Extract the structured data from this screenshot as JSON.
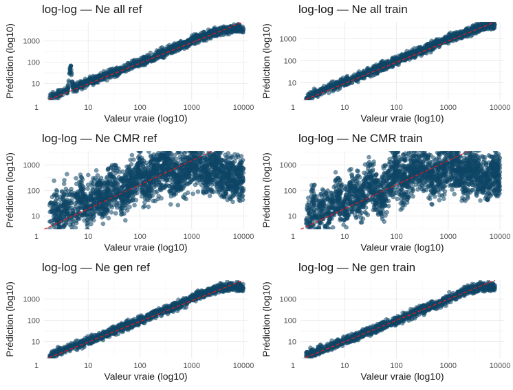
{
  "chart_data": [
    {
      "type": "scatter",
      "title": "log-log — Ne all ref",
      "xlabel": "Valeur vraie (log10)",
      "ylabel": "Prédiction (log10)",
      "x_scale": "log10",
      "y_scale": "log10",
      "xlim": [
        1.4,
        12000
      ],
      "ylim": [
        1.6,
        7800
      ],
      "x_ticks": [
        1,
        10,
        100,
        1000,
        10000
      ],
      "x_tick_labels": [
        "1",
        "10",
        "100",
        "1000",
        "10000"
      ],
      "y_ticks": [
        10,
        100,
        1000
      ],
      "y_tick_labels": [
        "10",
        "100",
        "1000"
      ],
      "series": [
        {
          "points": [
            [
              1.8,
              2.1
            ],
            [
              2.2,
              2.9
            ],
            [
              3,
              3.4
            ],
            [
              4,
              4.9
            ],
            [
              4.6,
              64
            ],
            [
              5,
              6.2
            ],
            [
              7,
              7.9
            ],
            [
              10,
              12
            ],
            [
              15,
              15.5
            ],
            [
              20,
              22
            ],
            [
              30,
              29
            ],
            [
              50,
              48
            ],
            [
              80,
              80
            ],
            [
              120,
              115
            ],
            [
              200,
              190
            ],
            [
              300,
              310
            ],
            [
              500,
              470
            ],
            [
              800,
              760
            ],
            [
              1000,
              1100
            ],
            [
              2000,
              1900
            ],
            [
              3000,
              2600
            ],
            [
              5000,
              3500
            ],
            [
              8000,
              3900
            ],
            [
              10000,
              3200
            ]
          ],
          "spread_dex": 0.1,
          "marker_color": "#0e4666"
        }
      ],
      "reference_line": {
        "from": [
          1.4,
          1.4
        ],
        "to": [
          10000,
          7800
        ],
        "color": "#e41a1c",
        "style": "dashed"
      },
      "grid": true,
      "legend": "none"
    },
    {
      "type": "scatter",
      "title": "log-log — Ne all train",
      "xlabel": "Valeur vraie (log10)",
      "ylabel": "Prédiction (log10)",
      "x_scale": "log10",
      "y_scale": "log10",
      "xlim": [
        1.4,
        12000
      ],
      "ylim": [
        1.6,
        5800
      ],
      "x_ticks": [
        1,
        10,
        100,
        1000,
        10000
      ],
      "x_tick_labels": [
        "1",
        "10",
        "100",
        "1000",
        "10000"
      ],
      "y_ticks": [
        10,
        100,
        1000
      ],
      "y_tick_labels": [
        "10",
        "100",
        "1000"
      ],
      "series": [
        {
          "points": [
            [
              1.8,
              2.0
            ],
            [
              2.2,
              2.8
            ],
            [
              3,
              3.3
            ],
            [
              4,
              4.6
            ],
            [
              5,
              5.9
            ],
            [
              7,
              8
            ],
            [
              10,
              11
            ],
            [
              15,
              15
            ],
            [
              20,
              21
            ],
            [
              30,
              30
            ],
            [
              50,
              50
            ],
            [
              80,
              78
            ],
            [
              120,
              118
            ],
            [
              200,
              200
            ],
            [
              300,
              290
            ],
            [
              500,
              480
            ],
            [
              800,
              760
            ],
            [
              1000,
              1000
            ],
            [
              2000,
              1800
            ],
            [
              3000,
              2600
            ],
            [
              5000,
              3800
            ],
            [
              8000,
              4300
            ]
          ],
          "spread_dex": 0.1,
          "marker_color": "#0e4666"
        }
      ],
      "reference_line": {
        "from": [
          1.4,
          1.4
        ],
        "to": [
          8000,
          5800
        ],
        "color": "#e41a1c",
        "style": "dashed"
      },
      "grid": true,
      "legend": "none"
    },
    {
      "type": "scatter",
      "title": "log-log — Ne CMR ref",
      "xlabel": "Valeur vraie (log10)",
      "ylabel": "Prédiction (log10)",
      "x_scale": "log10",
      "y_scale": "log10",
      "xlim": [
        1.4,
        12000
      ],
      "ylim": [
        3.0,
        3500
      ],
      "x_ticks": [
        1,
        10,
        100,
        1000,
        10000
      ],
      "x_tick_labels": [
        "1",
        "10",
        "100",
        "1000",
        "10000"
      ],
      "y_ticks": [
        10,
        100,
        1000
      ],
      "y_tick_labels": [
        "10",
        "100",
        "1000"
      ],
      "series": [
        {
          "points": [
            [
              1.8,
              6
            ],
            [
              2,
              14
            ],
            [
              2.5,
              20
            ],
            [
              3,
              10
            ],
            [
              4,
              30
            ],
            [
              5,
              12
            ],
            [
              7,
              50
            ],
            [
              10,
              20
            ],
            [
              15,
              80
            ],
            [
              20,
              40
            ],
            [
              30,
              150
            ],
            [
              50,
              70
            ],
            [
              80,
              300
            ],
            [
              100,
              1000
            ],
            [
              120,
              200
            ],
            [
              200,
              500
            ],
            [
              300,
              900
            ],
            [
              500,
              300
            ],
            [
              800,
              700
            ],
            [
              1000,
              1500
            ],
            [
              2000,
              500
            ],
            [
              3000,
              800
            ],
            [
              5000,
              300
            ],
            [
              8000,
              400
            ],
            [
              10000,
              250
            ]
          ],
          "spread_dex": 0.45,
          "marker_color": "#0e4666"
        }
      ],
      "reference_line": {
        "from": [
          1.4,
          3.0
        ],
        "to": [
          2500,
          3500
        ],
        "color": "#e41a1c",
        "style": "dashed"
      },
      "grid": true,
      "legend": "none"
    },
    {
      "type": "scatter",
      "title": "log-log — Ne CMR train",
      "xlabel": "Valeur vraie (log10)",
      "ylabel": "Prédiction (log10)",
      "x_scale": "log10",
      "y_scale": "log10",
      "xlim": [
        1.4,
        12000
      ],
      "ylim": [
        3.0,
        3500
      ],
      "x_ticks": [
        1,
        10,
        100,
        1000,
        10000
      ],
      "x_tick_labels": [
        "1",
        "10",
        "100",
        "1000",
        "10000"
      ],
      "y_ticks": [
        10,
        100,
        1000
      ],
      "y_tick_labels": [
        "10",
        "100",
        "1000"
      ],
      "series": [
        {
          "points": [
            [
              1.8,
              5
            ],
            [
              2,
              12
            ],
            [
              2.5,
              25
            ],
            [
              3,
              8
            ],
            [
              4,
              30
            ],
            [
              5,
              10
            ],
            [
              7,
              60
            ],
            [
              10,
              18
            ],
            [
              15,
              90
            ],
            [
              20,
              40
            ],
            [
              30,
              180
            ],
            [
              50,
              60
            ],
            [
              80,
              400
            ],
            [
              100,
              1000
            ],
            [
              120,
              200
            ],
            [
              200,
              500
            ],
            [
              300,
              800
            ],
            [
              500,
              300
            ],
            [
              800,
              700
            ],
            [
              1000,
              1200
            ],
            [
              2000,
              400
            ],
            [
              3000,
              700
            ],
            [
              5000,
              250
            ],
            [
              8000,
              500
            ],
            [
              10000,
              300
            ]
          ],
          "spread_dex": 0.45,
          "marker_color": "#0e4666"
        }
      ],
      "reference_line": {
        "from": [
          1.4,
          3.0
        ],
        "to": [
          2500,
          3500
        ],
        "color": "#e41a1c",
        "style": "dashed"
      },
      "grid": true,
      "legend": "none"
    },
    {
      "type": "scatter",
      "title": "log-log — Ne gen ref",
      "xlabel": "Valeur vraie (log10)",
      "ylabel": "Prédiction (log10)",
      "x_scale": "log10",
      "y_scale": "log10",
      "xlim": [
        1.4,
        12000
      ],
      "ylim": [
        1.6,
        7800
      ],
      "x_ticks": [
        1,
        10,
        100,
        1000,
        10000
      ],
      "x_tick_labels": [
        "1",
        "10",
        "100",
        "1000",
        "10000"
      ],
      "y_ticks": [
        10,
        100,
        1000
      ],
      "y_tick_labels": [
        "10",
        "100",
        "1000"
      ],
      "series": [
        {
          "points": [
            [
              1.8,
              2.2
            ],
            [
              2.2,
              2.8
            ],
            [
              3,
              3.5
            ],
            [
              4,
              4.5
            ],
            [
              5,
              5.5
            ],
            [
              7,
              7.5
            ],
            [
              10,
              11
            ],
            [
              15,
              15
            ],
            [
              20,
              21
            ],
            [
              30,
              30
            ],
            [
              50,
              50
            ],
            [
              80,
              78
            ],
            [
              120,
              118
            ],
            [
              200,
              200
            ],
            [
              300,
              300
            ],
            [
              500,
              480
            ],
            [
              800,
              760
            ],
            [
              1000,
              1100
            ],
            [
              2000,
              2200
            ],
            [
              3000,
              3000
            ],
            [
              5000,
              3800
            ],
            [
              8000,
              4000
            ],
            [
              10000,
              3200
            ]
          ],
          "spread_dex": 0.1,
          "marker_color": "#0e4666"
        }
      ],
      "reference_line": {
        "from": [
          1.4,
          1.4
        ],
        "to": [
          10000,
          7800
        ],
        "color": "#e41a1c",
        "style": "dashed"
      },
      "grid": true,
      "legend": "none"
    },
    {
      "type": "scatter",
      "title": "log-log — Ne gen train",
      "xlabel": "Valeur vraie (log10)",
      "ylabel": "Prédiction (log10)",
      "x_scale": "log10",
      "y_scale": "log10",
      "xlim": [
        1.4,
        12000
      ],
      "ylim": [
        1.6,
        7800
      ],
      "x_ticks": [
        1,
        10,
        100,
        1000,
        10000
      ],
      "x_tick_labels": [
        "1",
        "10",
        "100",
        "1000",
        "10000"
      ],
      "y_ticks": [
        10,
        100,
        1000
      ],
      "y_tick_labels": [
        "10",
        "100",
        "1000"
      ],
      "series": [
        {
          "points": [
            [
              1.8,
              2.2
            ],
            [
              2.2,
              2.8
            ],
            [
              3,
              3.5
            ],
            [
              4,
              4.5
            ],
            [
              5,
              5.5
            ],
            [
              7,
              7.5
            ],
            [
              10,
              11
            ],
            [
              15,
              15
            ],
            [
              20,
              21
            ],
            [
              30,
              30
            ],
            [
              50,
              50
            ],
            [
              80,
              78
            ],
            [
              120,
              118
            ],
            [
              200,
              200
            ],
            [
              300,
              300
            ],
            [
              500,
              480
            ],
            [
              800,
              760
            ],
            [
              1000,
              1100
            ],
            [
              2000,
              2200
            ],
            [
              3000,
              3000
            ],
            [
              5000,
              3800
            ],
            [
              8000,
              3600
            ]
          ],
          "spread_dex": 0.1,
          "marker_color": "#0e4666"
        }
      ],
      "reference_line": {
        "from": [
          1.4,
          1.4
        ],
        "to": [
          8000,
          7800
        ],
        "color": "#e41a1c",
        "style": "dashed"
      },
      "grid": true,
      "legend": "none"
    }
  ]
}
